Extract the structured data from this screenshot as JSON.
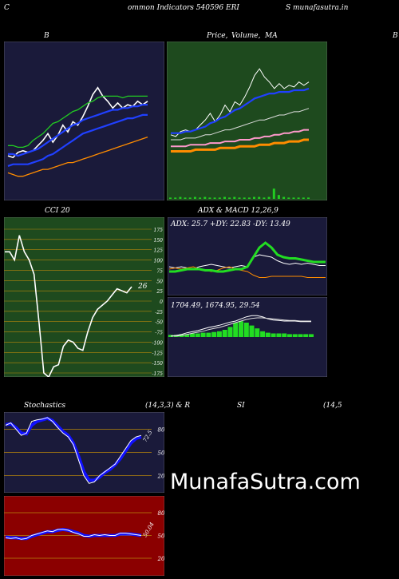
{
  "header": {
    "left_letter": "C",
    "title": "ommon  Indicators 540596  ERI",
    "site": "S munafasutra.in"
  },
  "row1": {
    "left_title": "B",
    "mid_title_1": "Price,",
    "mid_title_2": "Volume,",
    "mid_title_3": "MA",
    "right_letter": "B"
  },
  "row2": {
    "left_title": "CCI 20",
    "mid_title": "ADX  & MACD 12,26,9",
    "adx_text": "ADX: 25.7 +DY: 22.83 -DY: 13.49",
    "macd_text": "1704.49,  1674.95,  29.54"
  },
  "row3": {
    "left_title": "Stochastics",
    "left_params": "(14,3,3) & R",
    "mid_title": "SI",
    "right_params": "(14,5",
    "stoch_value_label": "72.5",
    "rsi_value_label": "50.04"
  },
  "watermark": "MunafaSutra.com",
  "colors": {
    "bg": "#000000",
    "dark_panel": "#1a1a3a",
    "green_panel": "#1e4a1e",
    "rsi_panel": "#8b0000",
    "grid_orange": "#b8860b",
    "blue": "#1010ff",
    "green": "#22cc22"
  },
  "chart_data": [
    {
      "id": "bollinger",
      "type": "line",
      "title": "B",
      "series": [
        {
          "values": [
            172,
            171,
            174,
            175,
            174,
            175,
            178,
            181,
            185,
            180,
            184,
            190,
            186,
            192,
            190,
            195,
            201,
            208,
            212,
            207,
            204,
            200,
            203,
            200,
            202,
            201,
            204,
            202,
            204
          ]
        },
        {
          "values": [
            178,
            178,
            177,
            177,
            178,
            181,
            183,
            185,
            188,
            191,
            192,
            194,
            196,
            198,
            199,
            201,
            203,
            204,
            206,
            207,
            207,
            207,
            207,
            206,
            207,
            207,
            207,
            207,
            207
          ]
        },
        {
          "values": [
            173,
            173,
            172,
            173,
            174,
            175,
            176,
            178,
            180,
            182,
            184,
            186,
            188,
            190,
            191,
            193,
            194,
            195,
            196,
            197,
            198,
            199,
            199,
            200,
            200,
            201,
            201,
            202,
            202
          ]
        },
        {
          "values": [
            166,
            167,
            167,
            167,
            167,
            168,
            169,
            170,
            172,
            173,
            175,
            177,
            179,
            181,
            183,
            185,
            186,
            187,
            188,
            189,
            190,
            191,
            192,
            193,
            194,
            194,
            195,
            196,
            196
          ]
        },
        {
          "values": [
            162,
            161,
            160,
            160,
            161,
            162,
            163,
            164,
            164,
            165,
            166,
            167,
            168,
            168,
            169,
            170,
            171,
            172,
            173,
            174,
            175,
            176,
            177,
            178,
            179,
            180,
            181,
            182,
            183
          ]
        }
      ]
    },
    {
      "id": "price_volume_ma",
      "type": "line",
      "title": "Price, Volume, MA",
      "series": [
        {
          "values": [
            183,
            182,
            185,
            186,
            185,
            186,
            189,
            192,
            196,
            191,
            195,
            201,
            197,
            203,
            201,
            206,
            212,
            219,
            223,
            218,
            215,
            211,
            214,
            211,
            213,
            212,
            215,
            213,
            215
          ]
        },
        {
          "values": [
            184,
            184,
            184,
            185,
            185,
            186,
            187,
            188,
            190,
            191,
            193,
            194,
            196,
            198,
            199,
            201,
            203,
            205,
            206,
            207,
            208,
            208,
            209,
            209,
            209,
            210,
            210,
            210,
            211
          ]
        },
        {
          "values": [
            180,
            180,
            180,
            181,
            181,
            181,
            182,
            183,
            183,
            184,
            185,
            186,
            186,
            187,
            188,
            189,
            190,
            191,
            192,
            192,
            193,
            194,
            195,
            195,
            196,
            197,
            197,
            198,
            199
          ]
        },
        {
          "values": [
            176,
            176,
            176,
            176,
            177,
            177,
            177,
            177,
            178,
            178,
            178,
            179,
            179,
            179,
            180,
            180,
            180,
            181,
            181,
            182,
            182,
            183,
            183,
            184,
            184,
            185,
            185,
            186,
            186
          ]
        },
        {
          "values": [
            173,
            173,
            173,
            173,
            173,
            174,
            174,
            174,
            174,
            174,
            175,
            175,
            175,
            175,
            176,
            176,
            176,
            176,
            177,
            177,
            177,
            178,
            178,
            178,
            179,
            179,
            179,
            180,
            180
          ]
        },
        {
          "name": "volume",
          "values": [
            2,
            2,
            3,
            2,
            2,
            3,
            2,
            3,
            2,
            2,
            2,
            3,
            2,
            3,
            2,
            2,
            2,
            3,
            3,
            2,
            3,
            16,
            6,
            3,
            2,
            2,
            2,
            2,
            2
          ]
        }
      ]
    },
    {
      "id": "cci",
      "type": "line",
      "title": "CCI 20",
      "ylim": [
        -175,
        175
      ],
      "ytick_labels": [
        "175",
        "150",
        "125",
        "100",
        "75",
        "50",
        "25",
        "0",
        "-25",
        "-50",
        "-75",
        "-100",
        "-125",
        "-150",
        "-175"
      ],
      "last_value_label": "26",
      "series": [
        {
          "name": "CCI",
          "values": [
            120,
            120,
            100,
            160,
            120,
            100,
            65,
            -50,
            -175,
            -185,
            -160,
            -155,
            -110,
            -95,
            -100,
            -115,
            -120,
            -75,
            -40,
            -20,
            -10,
            0,
            15,
            30,
            25,
            20,
            35
          ]
        }
      ]
    },
    {
      "id": "adx",
      "type": "line",
      "title": "ADX",
      "series": [
        {
          "name": "+DY",
          "values": [
            22,
            21,
            22,
            21,
            20,
            22,
            23,
            24,
            23,
            22,
            21,
            22,
            23,
            22,
            30,
            32,
            31,
            30,
            27,
            25,
            24,
            25,
            24,
            25,
            24,
            23,
            23
          ]
        },
        {
          "name": "-DY",
          "values": [
            20,
            21,
            20,
            21,
            22,
            20,
            19,
            18,
            19,
            21,
            22,
            20,
            19,
            18,
            15,
            13,
            13,
            14,
            14,
            14,
            14,
            14,
            14,
            13,
            13,
            13,
            13
          ]
        },
        {
          "name": "ADX",
          "values": [
            18,
            18,
            19,
            20,
            20,
            20,
            19,
            19,
            18,
            18,
            19,
            20,
            20,
            22,
            30,
            38,
            42,
            38,
            32,
            30,
            29,
            29,
            28,
            27,
            26,
            26,
            26
          ]
        }
      ]
    },
    {
      "id": "macd",
      "type": "line",
      "title": "MACD 12,26,9",
      "series": [
        {
          "name": "MACD",
          "values": [
            2,
            3,
            5,
            8,
            10,
            12,
            15,
            18,
            20,
            22,
            25,
            28,
            30,
            34,
            38,
            40,
            40,
            38,
            34,
            32,
            31,
            30,
            30,
            30,
            29,
            29,
            29
          ]
        },
        {
          "name": "Signal",
          "values": [
            2,
            2,
            3,
            5,
            7,
            9,
            11,
            14,
            16,
            18,
            21,
            24,
            27,
            30,
            33,
            35,
            36,
            36,
            35,
            34,
            33,
            32,
            31,
            31,
            30,
            30,
            30
          ]
        },
        {
          "name": "Histogram",
          "values": [
            3,
            3,
            4,
            4,
            5,
            5,
            6,
            6,
            7,
            8,
            10,
            14,
            20,
            22,
            20,
            16,
            12,
            8,
            6,
            5,
            5,
            5,
            4,
            4,
            4,
            4,
            4
          ]
        }
      ]
    },
    {
      "id": "stochastics",
      "type": "line",
      "title": "Stochastics (14,3,3)",
      "ylim": [
        0,
        100
      ],
      "ytick_labels": [
        "80",
        "50",
        "20"
      ],
      "series": [
        {
          "name": "%K",
          "values": [
            85,
            88,
            80,
            72,
            75,
            90,
            92,
            93,
            95,
            90,
            82,
            75,
            70,
            60,
            40,
            20,
            10,
            12,
            20,
            25,
            30,
            35,
            45,
            55,
            65,
            70,
            72
          ]
        },
        {
          "name": "%D",
          "values": [
            86,
            87,
            82,
            75,
            74,
            85,
            90,
            92,
            94,
            91,
            84,
            77,
            72,
            62,
            45,
            25,
            14,
            14,
            18,
            24,
            28,
            34,
            42,
            52,
            62,
            68,
            70
          ]
        }
      ]
    },
    {
      "id": "rsi",
      "type": "line",
      "title": "RSI (14,5",
      "ylim": [
        0,
        100
      ],
      "ytick_labels": [
        "80",
        "50",
        "20"
      ],
      "series": [
        {
          "name": "RSI",
          "values": [
            47,
            46,
            47,
            45,
            46,
            50,
            52,
            54,
            56,
            55,
            58,
            58,
            57,
            54,
            52,
            49,
            49,
            51,
            50,
            51,
            50,
            50,
            53,
            53,
            52,
            51,
            50
          ]
        },
        {
          "name": "RSI-smoothed",
          "values": [
            48,
            47,
            47,
            46,
            46,
            49,
            51,
            53,
            55,
            55,
            57,
            58,
            57,
            55,
            53,
            50,
            49,
            50,
            50,
            50,
            50,
            50,
            52,
            52,
            52,
            51,
            50
          ]
        }
      ]
    }
  ]
}
